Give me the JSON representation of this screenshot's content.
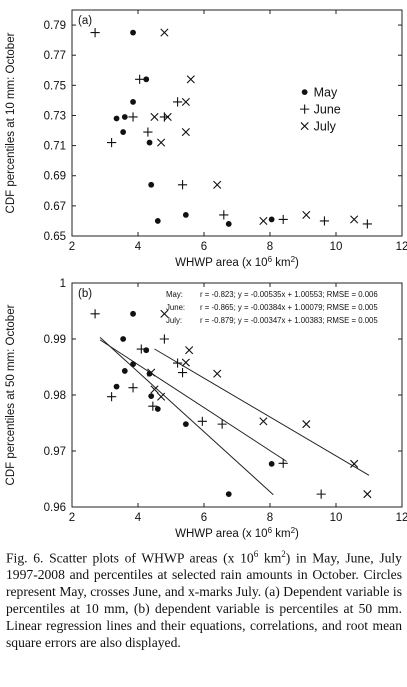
{
  "chart_data": [
    {
      "type": "scatter",
      "panel_label": "(a)",
      "xlabel": "WHWP area (x 10",
      "xlabel_exp": "6",
      "xlabel_unit": " km",
      "xlabel_unit_exp": "2",
      "xlabel_close": ")",
      "ylabel": "CDF percentiles at 10 mm: October",
      "xlim": [
        2,
        12
      ],
      "ylim": [
        0.65,
        0.8
      ],
      "xticks": [
        "2",
        "4",
        "6",
        "8",
        "10",
        "12"
      ],
      "yticks": [
        "0.65",
        "0.67",
        "0.69",
        "0.71",
        "0.73",
        "0.75",
        "0.77",
        "0.79"
      ],
      "legend": {
        "position": "center-right",
        "entries": [
          "May",
          "June",
          "July"
        ]
      },
      "series": [
        {
          "name": "May",
          "marker": "circle",
          "x": [
            3.85,
            4.25,
            3.85,
            3.35,
            3.6,
            3.55,
            4.35,
            4.4,
            4.6,
            5.45,
            6.75,
            8.05
          ],
          "y": [
            0.785,
            0.754,
            0.739,
            0.728,
            0.729,
            0.719,
            0.712,
            0.684,
            0.66,
            0.664,
            0.658,
            0.661
          ]
        },
        {
          "name": "June",
          "marker": "plus",
          "x": [
            2.7,
            4.05,
            3.2,
            3.85,
            4.3,
            4.8,
            5.2,
            5.35,
            6.6,
            8.4,
            9.65,
            10.95
          ],
          "y": [
            0.785,
            0.754,
            0.712,
            0.729,
            0.719,
            0.729,
            0.739,
            0.684,
            0.664,
            0.661,
            0.66,
            0.658
          ]
        },
        {
          "name": "July",
          "marker": "cross",
          "x": [
            4.8,
            5.6,
            5.45,
            4.9,
            4.5,
            5.45,
            4.7,
            6.4,
            7.8,
            9.1,
            10.55
          ],
          "y": [
            0.785,
            0.754,
            0.739,
            0.729,
            0.729,
            0.719,
            0.712,
            0.684,
            0.66,
            0.664,
            0.661
          ]
        }
      ]
    },
    {
      "type": "scatter",
      "panel_label": "(b)",
      "xlabel": "WHWP area (x 10",
      "xlabel_exp": "6",
      "xlabel_unit": " km",
      "xlabel_unit_exp": "2",
      "xlabel_close": ")",
      "ylabel": "CDF percentiles at 50 mm: October",
      "xlim": [
        2,
        12
      ],
      "ylim": [
        0.96,
        1.0
      ],
      "xticks": [
        "2",
        "4",
        "6",
        "8",
        "10",
        "12"
      ],
      "yticks": [
        "0.96",
        "0.97",
        "0.98",
        "0.99",
        "1"
      ],
      "annotations": [
        {
          "month": "May:",
          "text": "r = -0.823; y = -0.00535x + 1.00553; RMSE = 0.006"
        },
        {
          "month": "June:",
          "text": "r = -0.865; y = -0.00384x + 1.00079; RMSE = 0.005"
        },
        {
          "month": "July:",
          "text": "r = -0.879; y = -0.00347x + 1.00383; RMSE = 0.005"
        }
      ],
      "regression_lines": [
        {
          "name": "May",
          "slope": -0.00535,
          "intercept": 1.00553,
          "x_range": [
            2.85,
            8.1
          ]
        },
        {
          "name": "June",
          "slope": -0.00384,
          "intercept": 1.00079,
          "x_range": [
            2.85,
            8.5
          ]
        },
        {
          "name": "July",
          "slope": -0.00347,
          "intercept": 1.00383,
          "x_range": [
            4.5,
            11.0
          ]
        }
      ],
      "series": [
        {
          "name": "May",
          "marker": "circle",
          "x": [
            3.85,
            3.55,
            4.25,
            3.85,
            3.35,
            3.6,
            4.35,
            4.4,
            4.6,
            5.45,
            8.05,
            6.75
          ],
          "y": [
            0.9945,
            0.99,
            0.988,
            0.9855,
            0.9815,
            0.9843,
            0.9838,
            0.9798,
            0.9775,
            0.9748,
            0.9677,
            0.9623
          ]
        },
        {
          "name": "June",
          "marker": "plus",
          "x": [
            2.7,
            4.8,
            4.1,
            5.2,
            3.85,
            3.2,
            5.35,
            4.45,
            5.95,
            6.55,
            8.4,
            9.55
          ],
          "y": [
            0.9945,
            0.99,
            0.9882,
            0.9857,
            0.9813,
            0.9797,
            0.984,
            0.978,
            0.9753,
            0.9748,
            0.9678,
            0.9623
          ]
        },
        {
          "name": "July",
          "marker": "cross",
          "x": [
            4.8,
            5.55,
            5.45,
            6.4,
            7.8,
            9.1,
            4.5,
            4.7,
            10.55,
            10.95,
            4.4
          ],
          "y": [
            0.9945,
            0.988,
            0.9858,
            0.9838,
            0.9753,
            0.9748,
            0.981,
            0.9797,
            0.9677,
            0.9623,
            0.984
          ]
        }
      ]
    }
  ],
  "caption": {
    "fig_label": "Fig. 6.",
    "part1": " Scatter plots of WHWP areas (x 10",
    "exp1": "6",
    "part2": " km",
    "exp2": "2",
    "part3": ") in May, June, July 1997-2008 and percentiles at selected rain amounts in October. Circles represent May, crosses June, and x-marks July. (a) Dependent variable is percentiles at 10 mm, (b) dependent variable is percentiles at 50 mm. Linear regression lines and their equations, correlations, and root mean square errors are also displayed."
  }
}
